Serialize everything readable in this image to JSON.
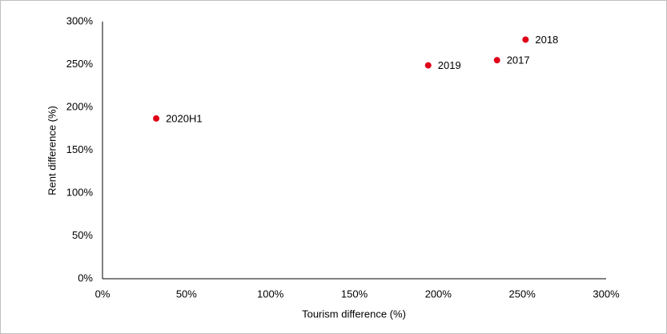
{
  "chart_data": {
    "type": "scatter",
    "x_label": "Tourism difference (%)",
    "y_label": "Rent difference (%)",
    "labels": [
      "2020H1",
      "2019",
      "2017",
      "2018"
    ],
    "x": [
      32,
      194,
      235,
      252
    ],
    "values": [
      187,
      249,
      255,
      279
    ],
    "color": "#e00018",
    "xlim": [
      0,
      300
    ],
    "xticks": [
      {
        "value": 0,
        "label": "0%"
      },
      {
        "value": 50,
        "label": "50%"
      },
      {
        "value": 100,
        "label": "100%"
      },
      {
        "value": 150,
        "label": "150%"
      },
      {
        "value": 200,
        "label": "200%"
      },
      {
        "value": 250,
        "label": "250%"
      },
      {
        "value": 300,
        "label": "300%"
      }
    ],
    "ylim": [
      0,
      300
    ],
    "yticks": [
      {
        "value": 0,
        "label": "0%"
      },
      {
        "value": 50,
        "label": "50%"
      },
      {
        "value": 100,
        "label": "100%"
      },
      {
        "value": 150,
        "label": "150%"
      },
      {
        "value": 200,
        "label": "200%"
      },
      {
        "value": 250,
        "label": "250%"
      },
      {
        "value": 300,
        "label": "300%"
      }
    ],
    "grid": false
  }
}
